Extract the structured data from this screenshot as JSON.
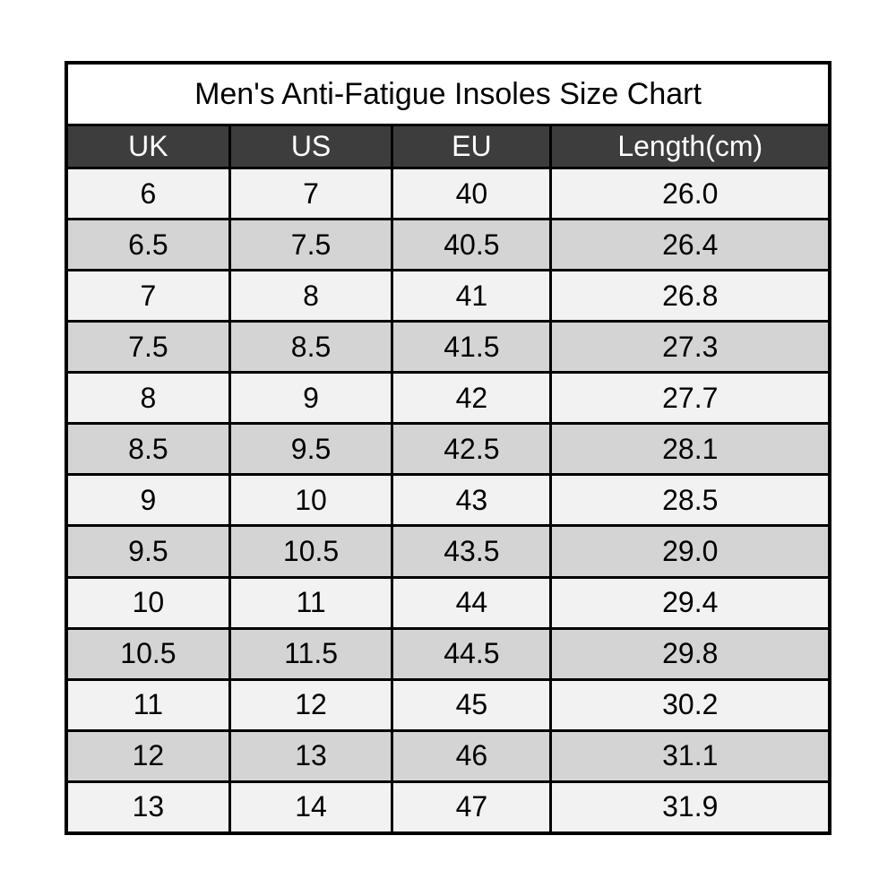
{
  "page": {
    "background": "#ffffff"
  },
  "chart_data": {
    "type": "table",
    "title": "Men's Anti-Fatigue Insoles Size Chart",
    "columns": [
      "UK",
      "US",
      "EU",
      "Length(cm)"
    ],
    "rows": [
      [
        "6",
        "7",
        "40",
        "26.0"
      ],
      [
        "6.5",
        "7.5",
        "40.5",
        "26.4"
      ],
      [
        "7",
        "8",
        "41",
        "26.8"
      ],
      [
        "7.5",
        "8.5",
        "41.5",
        "27.3"
      ],
      [
        "8",
        "9",
        "42",
        "27.7"
      ],
      [
        "8.5",
        "9.5",
        "42.5",
        "28.1"
      ],
      [
        "9",
        "10",
        "43",
        "28.5"
      ],
      [
        "9.5",
        "10.5",
        "43.5",
        "29.0"
      ],
      [
        "10",
        "11",
        "44",
        "29.4"
      ],
      [
        "10.5",
        "11.5",
        "44.5",
        "29.8"
      ],
      [
        "11",
        "12",
        "45",
        "30.2"
      ],
      [
        "12",
        "13",
        "46",
        "31.1"
      ],
      [
        "13",
        "14",
        "47",
        "31.9"
      ]
    ],
    "colors": {
      "border": "#000000",
      "title_bg": "#ffffff",
      "title_text": "#000000",
      "header_bg": "#3d3d3d",
      "header_text": "#ffffff",
      "row_stripe_light": "#f2f2f2",
      "row_stripe_dark": "#d4d4d4",
      "cell_text": "#000000"
    },
    "layout": {
      "stripes": "alternating starting light",
      "alignment": "center"
    }
  }
}
